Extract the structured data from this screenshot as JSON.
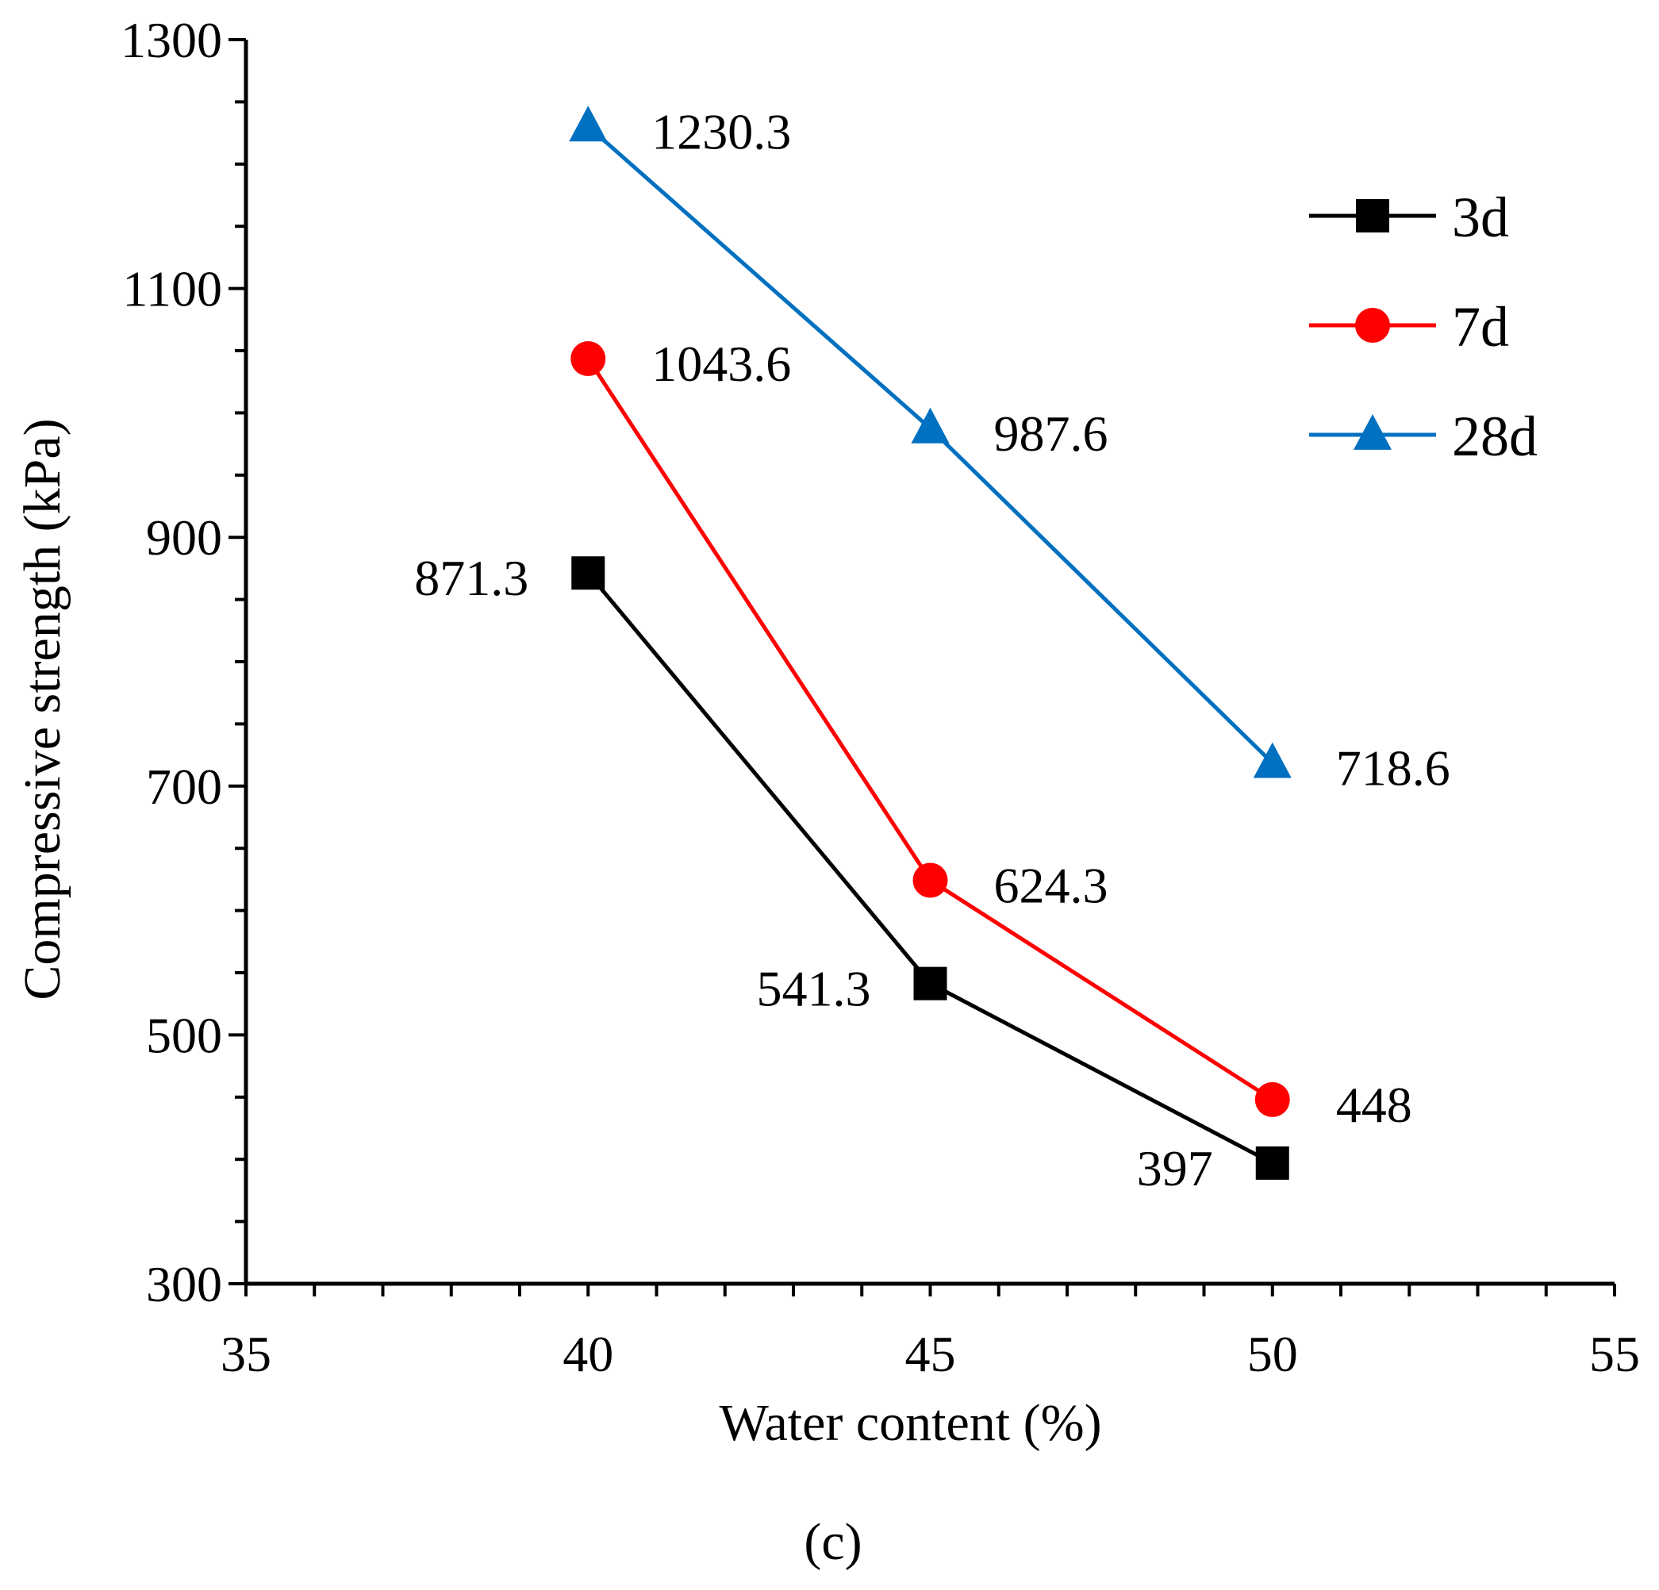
{
  "chart_data": {
    "type": "line",
    "panel_label": "(c)",
    "xlabel": "Water content (%)",
    "ylabel": "Compressive strength (kPa)",
    "xlim": [
      35,
      55
    ],
    "ylim": [
      300,
      1300
    ],
    "xticks": [
      35,
      40,
      45,
      50,
      55
    ],
    "yticks": [
      300,
      500,
      700,
      900,
      1100,
      1300
    ],
    "x_minor_step": 1,
    "y_minor_step": 50,
    "x": [
      40,
      45,
      50
    ],
    "legend_position": "upper-right",
    "series": [
      {
        "name": "3d",
        "marker": "square",
        "color": "#000000",
        "values": [
          871.3,
          541.3,
          397
        ],
        "labels": [
          "871.3",
          "541.3",
          "397"
        ],
        "label_side": [
          "left",
          "left",
          "left"
        ]
      },
      {
        "name": "7d",
        "marker": "circle",
        "color": "#ff0000",
        "values": [
          1043.6,
          624.3,
          448
        ],
        "labels": [
          "1043.6",
          "624.3",
          "448"
        ],
        "label_side": [
          "right",
          "right",
          "right"
        ]
      },
      {
        "name": "28d",
        "marker": "triangle",
        "color": "#0070c0",
        "values": [
          1230.3,
          987.6,
          718.6
        ],
        "labels": [
          "1230.3",
          "987.6",
          "718.6"
        ],
        "label_side": [
          "right",
          "right",
          "right"
        ]
      }
    ]
  }
}
